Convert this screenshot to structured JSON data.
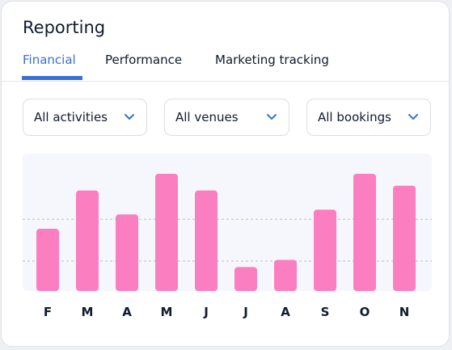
{
  "header": {
    "title": "Reporting"
  },
  "tabs": [
    {
      "label": "Financial",
      "active": true
    },
    {
      "label": "Performance",
      "active": false
    },
    {
      "label": "Marketing tracking",
      "active": false
    }
  ],
  "filters": [
    {
      "label": "All activities",
      "icon": "chevron-down-icon"
    },
    {
      "label": "All venues",
      "icon": "chevron-down-icon"
    },
    {
      "label": "All bookings",
      "icon": "chevron-down-icon"
    }
  ],
  "colors": {
    "accent": "#3a6fd8",
    "bar": "#fb7ec0"
  },
  "chart_data": {
    "type": "bar",
    "categories": [
      "F",
      "M",
      "A",
      "M",
      "J",
      "J",
      "A",
      "S",
      "O",
      "N"
    ],
    "values": [
      52,
      84,
      64,
      98,
      84,
      20,
      26,
      68,
      98,
      88
    ],
    "ylim": [
      0,
      100
    ],
    "grid": true
  }
}
